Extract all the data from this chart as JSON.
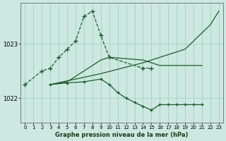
{
  "bg_color": "#cce8e0",
  "grid_color": "#99ccbb",
  "line_color": "#1a5c2a",
  "title": "Graphe pression niveau de la mer (hPa)",
  "xlim": [
    -0.5,
    23.5
  ],
  "ylim": [
    1021.55,
    1023.75
  ],
  "yticks": [
    1022,
    1023
  ],
  "xticks": [
    0,
    1,
    2,
    3,
    4,
    5,
    6,
    7,
    8,
    9,
    10,
    11,
    12,
    13,
    14,
    15,
    16,
    17,
    18,
    19,
    20,
    21,
    22,
    23
  ],
  "series": [
    {
      "x": [
        0,
        2,
        3,
        4,
        5,
        6,
        7,
        8,
        9,
        10,
        14,
        15
      ],
      "y": [
        1022.25,
        1022.5,
        1022.55,
        1022.75,
        1022.9,
        1023.05,
        1023.5,
        1023.6,
        1023.15,
        1022.75,
        1022.55,
        1022.55
      ],
      "has_markers": true,
      "linestyle": "--",
      "linewidth": 0.9,
      "markersize": 4
    },
    {
      "x": [
        3,
        9,
        14,
        16,
        19,
        20,
        21,
        22,
        23
      ],
      "y": [
        1022.25,
        1022.45,
        1022.65,
        1022.75,
        1022.9,
        1023.05,
        1023.2,
        1023.35,
        1023.6
      ],
      "has_markers": false,
      "linestyle": "-",
      "linewidth": 0.9,
      "markersize": 0
    },
    {
      "x": [
        3,
        5,
        7,
        9,
        10,
        14,
        15,
        16,
        17,
        18,
        19,
        20,
        21
      ],
      "y": [
        1022.25,
        1022.3,
        1022.5,
        1022.7,
        1022.75,
        1022.7,
        1022.65,
        1022.6,
        1022.6,
        1022.6,
        1022.6,
        1022.6,
        1022.6
      ],
      "has_markers": false,
      "linestyle": "-",
      "linewidth": 0.9,
      "markersize": 0
    },
    {
      "x": [
        3,
        5,
        7,
        9,
        10,
        11,
        12,
        13,
        14,
        15,
        16,
        17,
        18,
        19,
        20,
        21
      ],
      "y": [
        1022.25,
        1022.28,
        1022.3,
        1022.35,
        1022.25,
        1022.1,
        1022.0,
        1021.92,
        1021.85,
        1021.78,
        1021.88,
        1021.88,
        1021.88,
        1021.88,
        1021.88,
        1021.88
      ],
      "has_markers": true,
      "linestyle": "-",
      "linewidth": 0.9,
      "markersize": 3
    }
  ]
}
